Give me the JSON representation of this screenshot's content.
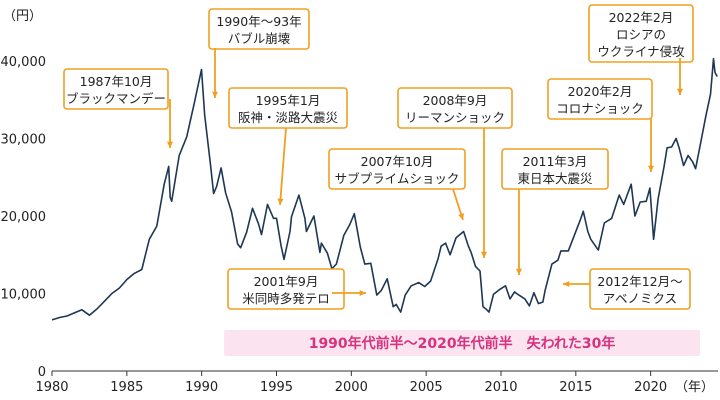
{
  "chart_data": {
    "type": "line",
    "ylabel": "（円）",
    "xlabel": "（年）",
    "xlim": [
      1980,
      2024.5
    ],
    "ylim": [
      0,
      44000
    ],
    "x_ticks": [
      1980,
      1985,
      1990,
      1995,
      2000,
      2005,
      2010,
      2015,
      2020
    ],
    "y_ticks": [
      0,
      10000,
      20000,
      30000,
      40000
    ],
    "y_tick_labels": [
      "0",
      "10,000",
      "20,000",
      "30,000",
      "40,000"
    ],
    "grid": false,
    "line_color": "#1e3754",
    "annotation_border_color": "#f0a020",
    "highlight_color": "#fbe3f0",
    "highlight_text_color": "#d6337e",
    "series": [
      {
        "points": [
          [
            1980.0,
            6600
          ],
          [
            1980.5,
            6900
          ],
          [
            1981.0,
            7100
          ],
          [
            1981.5,
            7500
          ],
          [
            1982.0,
            7900
          ],
          [
            1982.5,
            7200
          ],
          [
            1983.0,
            8000
          ],
          [
            1983.5,
            9000
          ],
          [
            1984.0,
            10000
          ],
          [
            1984.5,
            10700
          ],
          [
            1985.0,
            11800
          ],
          [
            1985.5,
            12600
          ],
          [
            1986.0,
            13100
          ],
          [
            1986.5,
            17000
          ],
          [
            1987.0,
            18700
          ],
          [
            1987.5,
            24100
          ],
          [
            1987.8,
            26400
          ],
          [
            1987.9,
            22400
          ],
          [
            1988.0,
            21900
          ],
          [
            1988.5,
            27800
          ],
          [
            1989.0,
            30200
          ],
          [
            1989.5,
            34500
          ],
          [
            1989.99,
            38900
          ],
          [
            1990.2,
            33000
          ],
          [
            1990.6,
            26500
          ],
          [
            1990.8,
            22900
          ],
          [
            1991.0,
            23800
          ],
          [
            1991.3,
            26200
          ],
          [
            1991.6,
            23000
          ],
          [
            1992.0,
            20500
          ],
          [
            1992.4,
            16400
          ],
          [
            1992.6,
            15900
          ],
          [
            1993.0,
            17900
          ],
          [
            1993.4,
            21000
          ],
          [
            1993.8,
            19000
          ],
          [
            1994.0,
            17600
          ],
          [
            1994.4,
            21500
          ],
          [
            1994.8,
            19700
          ],
          [
            1995.0,
            19700
          ],
          [
            1995.3,
            16200
          ],
          [
            1995.5,
            14400
          ],
          [
            1995.9,
            18000
          ],
          [
            1996.0,
            19900
          ],
          [
            1996.5,
            22700
          ],
          [
            1996.9,
            19700
          ],
          [
            1997.0,
            18000
          ],
          [
            1997.5,
            20000
          ],
          [
            1997.9,
            15300
          ],
          [
            1998.0,
            16500
          ],
          [
            1998.4,
            15200
          ],
          [
            1998.7,
            13200
          ],
          [
            1999.0,
            13800
          ],
          [
            1999.5,
            17500
          ],
          [
            1999.9,
            18900
          ],
          [
            2000.2,
            20300
          ],
          [
            2000.6,
            16000
          ],
          [
            2000.9,
            13800
          ],
          [
            2001.3,
            13900
          ],
          [
            2001.7,
            9800
          ],
          [
            2002.0,
            10400
          ],
          [
            2002.4,
            11900
          ],
          [
            2002.8,
            8300
          ],
          [
            2003.0,
            8600
          ],
          [
            2003.3,
            7600
          ],
          [
            2003.6,
            9800
          ],
          [
            2004.0,
            11000
          ],
          [
            2004.5,
            11400
          ],
          [
            2004.9,
            10900
          ],
          [
            2005.3,
            11600
          ],
          [
            2005.8,
            14500
          ],
          [
            2006.0,
            16100
          ],
          [
            2006.3,
            16500
          ],
          [
            2006.6,
            15000
          ],
          [
            2007.0,
            17200
          ],
          [
            2007.5,
            18000
          ],
          [
            2007.8,
            16200
          ],
          [
            2008.0,
            15300
          ],
          [
            2008.3,
            13500
          ],
          [
            2008.6,
            12900
          ],
          [
            2008.8,
            8300
          ],
          [
            2009.0,
            8000
          ],
          [
            2009.2,
            7600
          ],
          [
            2009.5,
            9900
          ],
          [
            2009.9,
            10500
          ],
          [
            2010.3,
            11000
          ],
          [
            2010.6,
            9300
          ],
          [
            2010.9,
            10200
          ],
          [
            2011.2,
            9800
          ],
          [
            2011.6,
            9300
          ],
          [
            2011.9,
            8400
          ],
          [
            2012.2,
            10100
          ],
          [
            2012.5,
            8700
          ],
          [
            2012.8,
            8900
          ],
          [
            2012.95,
            10400
          ],
          [
            2013.4,
            13800
          ],
          [
            2013.8,
            14300
          ],
          [
            2014.0,
            15500
          ],
          [
            2014.5,
            15500
          ],
          [
            2014.9,
            17500
          ],
          [
            2015.3,
            19500
          ],
          [
            2015.5,
            20600
          ],
          [
            2015.8,
            18000
          ],
          [
            2016.0,
            17000
          ],
          [
            2016.5,
            15600
          ],
          [
            2016.9,
            19100
          ],
          [
            2017.4,
            19700
          ],
          [
            2017.9,
            22700
          ],
          [
            2018.2,
            21500
          ],
          [
            2018.7,
            24100
          ],
          [
            2018.95,
            20000
          ],
          [
            2019.3,
            21800
          ],
          [
            2019.7,
            21900
          ],
          [
            2019.95,
            23600
          ],
          [
            2020.2,
            17000
          ],
          [
            2020.5,
            22200
          ],
          [
            2020.9,
            26400
          ],
          [
            2021.1,
            28800
          ],
          [
            2021.4,
            28900
          ],
          [
            2021.7,
            30000
          ],
          [
            2021.9,
            28800
          ],
          [
            2022.2,
            26500
          ],
          [
            2022.5,
            27800
          ],
          [
            2022.8,
            27000
          ],
          [
            2023.0,
            26100
          ],
          [
            2023.4,
            30000
          ],
          [
            2023.7,
            33000
          ],
          [
            2024.0,
            35700
          ],
          [
            2024.2,
            40300
          ],
          [
            2024.3,
            38500
          ],
          [
            2024.45,
            38000
          ]
        ]
      }
    ],
    "highlight_band": {
      "from": 1991.5,
      "to": 2023.3,
      "label": "1990年代前半～2020年代前半　失われた30年"
    },
    "annotations": [
      {
        "label_lines": [
          "1987年10月",
          "ブラックマンデー"
        ]
      },
      {
        "label_lines": [
          "1990年～93年",
          "バブル崩壊"
        ]
      },
      {
        "label_lines": [
          "1995年1月",
          "阪神・淡路大震災"
        ]
      },
      {
        "label_lines": [
          "2001年9月",
          "米同時多発テロ"
        ]
      },
      {
        "label_lines": [
          "2007年10月",
          "サブプライムショック"
        ]
      },
      {
        "label_lines": [
          "2008年9月",
          "リーマンショック"
        ]
      },
      {
        "label_lines": [
          "2011年3月",
          "東日本大震災"
        ]
      },
      {
        "label_lines": [
          "2012年12月～",
          "アベノミクス"
        ]
      },
      {
        "label_lines": [
          "2020年2月",
          "コロナショック"
        ]
      },
      {
        "label_lines": [
          "2022年2月",
          "ロシアの",
          "ウクライナ侵攻"
        ]
      }
    ]
  }
}
